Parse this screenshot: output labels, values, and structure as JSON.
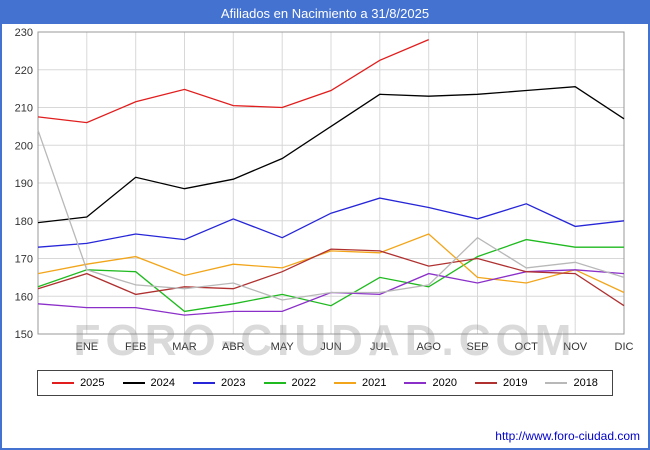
{
  "watermark": "FORO-CIUDAD.COM",
  "footer": {
    "url": "http://www.foro-ciudad.com"
  },
  "colors": {
    "title_bar_bg": "#4472d0",
    "frame": "#4472d0",
    "link": "#0000cc",
    "grid": "#d8d8d8",
    "plot_border": "#999999"
  },
  "chart_data": {
    "type": "line",
    "title": "Afiliados en Nacimiento a 31/8/2025",
    "x_labels": [
      "ENE",
      "FEB",
      "MAR",
      "ABR",
      "MAY",
      "JUN",
      "JUL",
      "AGO",
      "SEP",
      "OCT",
      "NOV",
      "DIC"
    ],
    "ylim": [
      150,
      230
    ],
    "yticks": [
      150,
      160,
      170,
      180,
      190,
      200,
      210,
      220,
      230
    ],
    "grid": true,
    "legend_position": "bottom",
    "series": [
      {
        "name": "2025",
        "color": "#e11d1d",
        "values": [
          207.5,
          206,
          211.5,
          214.8,
          210.5,
          210,
          214.5,
          222.5,
          228,
          null,
          null,
          null,
          null
        ]
      },
      {
        "name": "2024",
        "color": "#000000",
        "values": [
          179.5,
          181,
          191.5,
          188.5,
          191,
          196.5,
          205,
          213.5,
          213,
          213.5,
          214.5,
          215.5,
          207
        ]
      },
      {
        "name": "2023",
        "color": "#2626d8",
        "values": [
          173,
          174,
          176.5,
          175,
          180.5,
          175.5,
          182,
          186,
          183.5,
          180.5,
          184.5,
          178.5,
          180
        ]
      },
      {
        "name": "2022",
        "color": "#1fba1f",
        "values": [
          162.5,
          167,
          166.5,
          156,
          158,
          160.5,
          157.5,
          165,
          162.5,
          170.5,
          175,
          173,
          173
        ]
      },
      {
        "name": "2021",
        "color": "#f2a51a",
        "values": [
          166,
          168.5,
          170.5,
          165.5,
          168.5,
          167.5,
          172,
          171.5,
          176.5,
          165,
          163.5,
          167,
          161
        ]
      },
      {
        "name": "2020",
        "color": "#8b2fc9",
        "values": [
          158,
          157,
          157,
          155,
          156,
          156,
          161,
          160.5,
          166,
          163.5,
          166.5,
          167,
          166
        ]
      },
      {
        "name": "2019",
        "color": "#b03030",
        "values": [
          162,
          166,
          160.5,
          162.5,
          162,
          166.5,
          172.5,
          172,
          168,
          170,
          166.5,
          166,
          157.5
        ]
      },
      {
        "name": "2018",
        "color": "#b8b8b8",
        "values": [
          204,
          167,
          163,
          162,
          163.5,
          159,
          161,
          161,
          163,
          175.5,
          167.5,
          169,
          165
        ]
      }
    ]
  }
}
